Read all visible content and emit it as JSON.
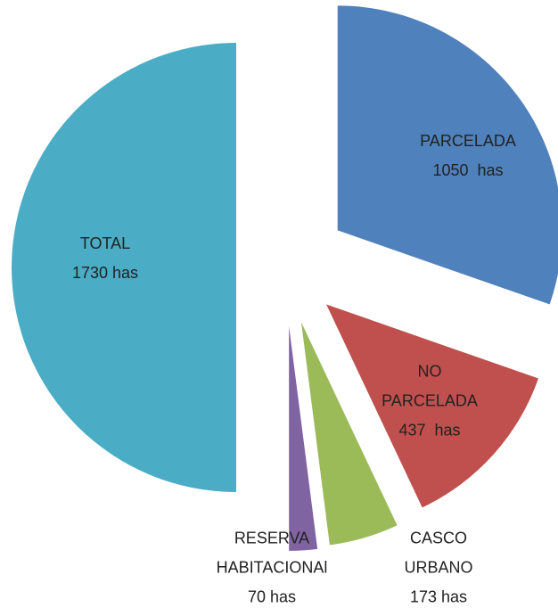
{
  "chart_data": {
    "type": "pie",
    "categories": [
      "PARCELADA",
      "NO PARCELADA",
      "CASCO URBANO",
      "RESERVA HABITACIONAl",
      "TOTAL"
    ],
    "values": [
      1050,
      437,
      173,
      70,
      1730
    ],
    "value_labels": [
      "1050  has",
      "437  has",
      "173 has",
      "70 has",
      "1730 has"
    ],
    "colors": [
      "#4f81bd",
      "#c0504d",
      "#9bbb59",
      "#8064a2",
      "#4bacc6"
    ]
  }
}
